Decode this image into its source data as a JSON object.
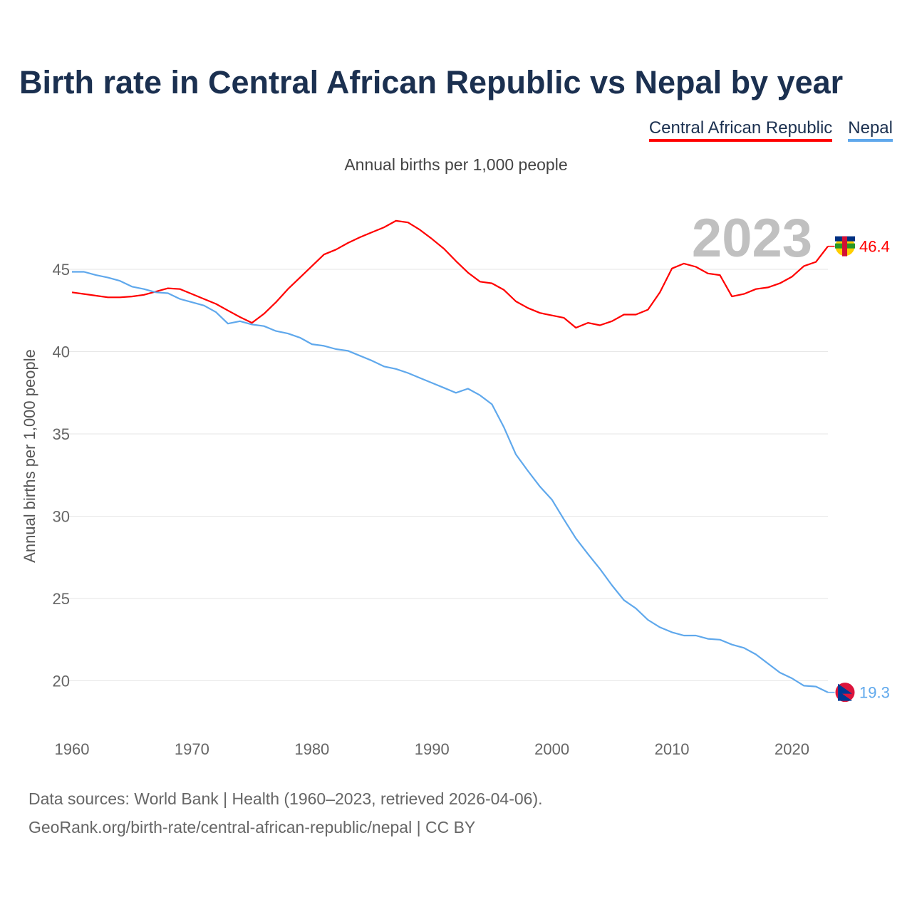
{
  "title": "Birth rate in Central African Republic vs Nepal by year",
  "subtitle": "Annual births per 1,000 people",
  "footer": {
    "line1": "Data sources: World Bank | Health (1960–2023, retrieved 2026-04-06).",
    "line2": "GeoRank.org/birth-rate/central-african-republic/nepal | CC BY"
  },
  "chart_data": {
    "type": "line",
    "title": "Birth rate in Central African Republic vs Nepal by year",
    "subtitle": "Annual births per 1,000 people",
    "xlabel": "",
    "ylabel": "Annual births per 1,000 people",
    "xlim": [
      1960,
      2023
    ],
    "ylim": [
      17.5,
      49
    ],
    "xticks": [
      "1960",
      "1970",
      "1980",
      "1990",
      "2000",
      "2010",
      "2020"
    ],
    "yticks": [
      "20",
      "25",
      "30",
      "35",
      "40",
      "45"
    ],
    "grid": true,
    "legend_position": "top-right",
    "watermark_year": "2023",
    "x": [
      1960,
      1961,
      1962,
      1963,
      1964,
      1965,
      1966,
      1967,
      1968,
      1969,
      1970,
      1971,
      1972,
      1973,
      1974,
      1975,
      1976,
      1977,
      1978,
      1979,
      1980,
      1981,
      1982,
      1983,
      1984,
      1985,
      1986,
      1987,
      1988,
      1989,
      1990,
      1991,
      1992,
      1993,
      1994,
      1995,
      1996,
      1997,
      1998,
      1999,
      2000,
      2001,
      2002,
      2003,
      2004,
      2005,
      2006,
      2007,
      2008,
      2009,
      2010,
      2011,
      2012,
      2013,
      2014,
      2015,
      2016,
      2017,
      2018,
      2019,
      2020,
      2021,
      2022,
      2023
    ],
    "series": [
      {
        "name": "Central African Republic",
        "color": "#ff0000",
        "end_label": "46.4",
        "values": [
          43.6,
          43.5,
          43.4,
          43.3,
          43.3,
          43.35,
          43.45,
          43.65,
          43.85,
          43.8,
          43.5,
          43.2,
          42.9,
          42.5,
          42.1,
          41.75,
          42.3,
          43.0,
          43.8,
          44.5,
          45.2,
          45.9,
          46.2,
          46.6,
          46.95,
          47.25,
          47.55,
          47.95,
          47.85,
          47.4,
          46.85,
          46.25,
          45.5,
          44.8,
          44.25,
          44.15,
          43.75,
          43.05,
          42.65,
          42.35,
          42.2,
          42.05,
          41.45,
          41.75,
          41.6,
          41.85,
          42.25,
          42.25,
          42.55,
          43.6,
          45.05,
          45.35,
          45.15,
          44.75,
          44.65,
          43.35,
          43.5,
          43.8,
          43.9,
          44.15,
          44.55,
          45.2,
          45.45,
          46.4
        ]
      },
      {
        "name": "Nepal",
        "color": "#5fa8ec",
        "end_label": "19.3",
        "values": [
          44.85,
          44.85,
          44.65,
          44.5,
          44.3,
          43.95,
          43.8,
          43.6,
          43.55,
          43.2,
          43.0,
          42.8,
          42.4,
          41.7,
          41.85,
          41.65,
          41.55,
          41.25,
          41.1,
          40.85,
          40.45,
          40.35,
          40.15,
          40.05,
          39.75,
          39.45,
          39.1,
          38.95,
          38.7,
          38.4,
          38.1,
          37.8,
          37.5,
          37.75,
          37.35,
          36.8,
          35.4,
          33.75,
          32.75,
          31.8,
          31.0,
          29.8,
          28.65,
          27.7,
          26.8,
          25.8,
          24.9,
          24.4,
          23.7,
          23.25,
          22.95,
          22.75,
          22.75,
          22.55,
          22.5,
          22.2,
          22.0,
          21.6,
          21.05,
          20.5,
          20.15,
          19.7,
          19.65,
          19.3
        ]
      }
    ]
  }
}
